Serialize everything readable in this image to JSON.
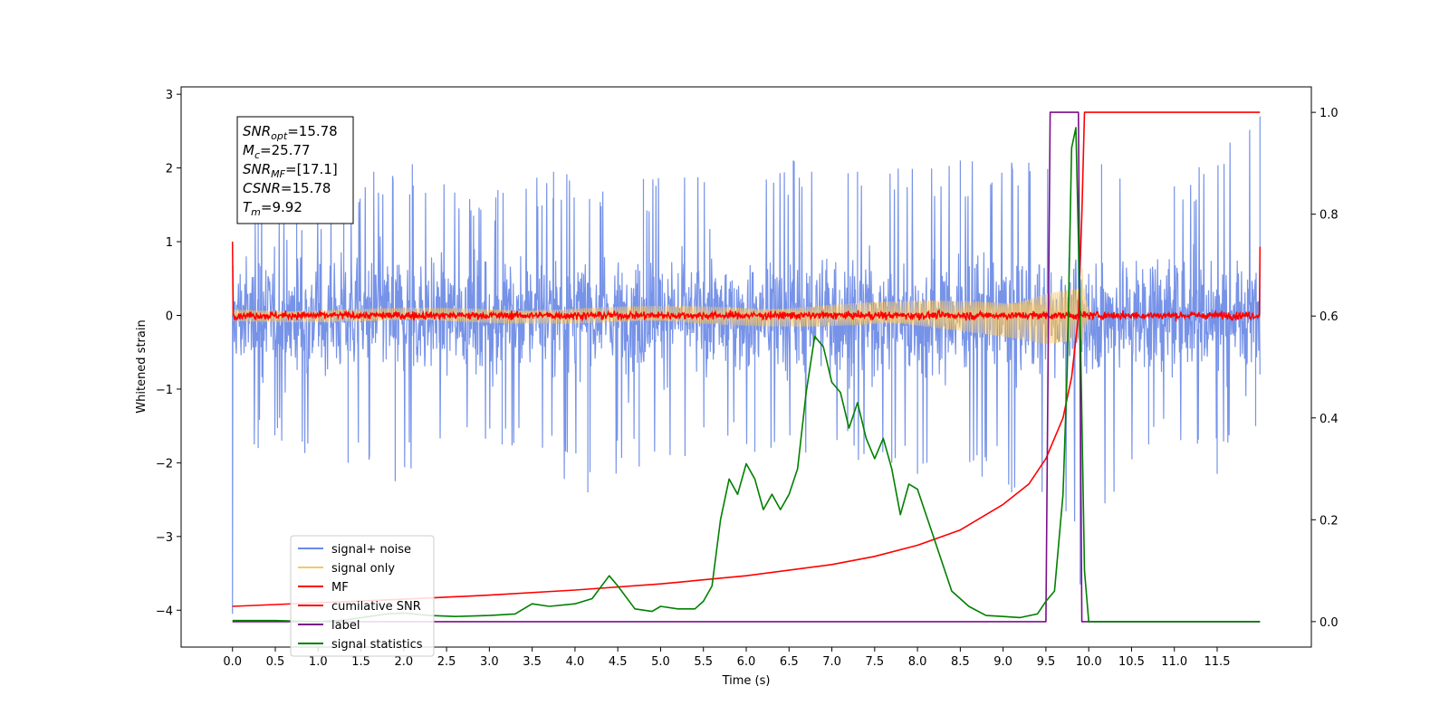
{
  "chart_data": {
    "type": "line",
    "xlabel": "Time (s)",
    "ylabel": "Whitened strain",
    "xlim": [
      -0.6,
      12.6
    ],
    "ylim": [
      -4.5,
      3.1
    ],
    "y2lim": [
      -0.05,
      1.05
    ],
    "x_ticks": [
      0.0,
      0.5,
      1.0,
      1.5,
      2.0,
      2.5,
      3.0,
      3.5,
      4.0,
      4.5,
      5.0,
      5.5,
      6.0,
      6.5,
      7.0,
      7.5,
      8.0,
      8.5,
      9.0,
      9.5,
      10.0,
      10.5,
      11.0,
      11.5
    ],
    "x_tick_labels": [
      "0.0",
      "0.5",
      "1.0",
      "1.5",
      "2.0",
      "2.5",
      "3.0",
      "3.5",
      "4.0",
      "4.5",
      "5.0",
      "5.5",
      "6.0",
      "6.5",
      "7.0",
      "7.5",
      "8.0",
      "8.5",
      "9.0",
      "9.5",
      "10.0",
      "10.5",
      "11.0",
      "11.5"
    ],
    "y_ticks": [
      3,
      2,
      1,
      0,
      -1,
      -2,
      -3,
      -4
    ],
    "y_tick_labels": [
      "3",
      "2",
      "1",
      "0",
      "−1",
      "−2",
      "−3",
      "−4"
    ],
    "y2_ticks": [
      1.0,
      0.8,
      0.6,
      0.4,
      0.2,
      0.0
    ],
    "y2_tick_labels": [
      "1.0",
      "0.8",
      "0.6",
      "0.4",
      "0.2",
      "0.0"
    ],
    "grid": false,
    "legend_position": "lower-left",
    "info_box": {
      "lines": [
        {
          "main": "SNR",
          "sub": "opt",
          "value": "=15.78"
        },
        {
          "main": "M",
          "sub": "c",
          "value": "=25.77"
        },
        {
          "main": "SNR",
          "sub": "MF",
          "value": "=[17.1]"
        },
        {
          "main": "CSNR",
          "sub": "",
          "value": "=15.78"
        },
        {
          "main": "T",
          "sub": "m",
          "value": "=9.92"
        }
      ]
    },
    "series": [
      {
        "name": "signal+ noise",
        "color": "#6b8ae6",
        "axis": "left",
        "kind": "noise",
        "x_range": [
          0.0,
          12.0
        ],
        "envelope_typical": 1.05,
        "peaks_upper": [
          [
            0.3,
            1.6
          ],
          [
            0.75,
            1.5
          ],
          [
            1.3,
            1.6
          ],
          [
            1.65,
            1.95
          ],
          [
            2.1,
            2.05
          ],
          [
            3.1,
            1.7
          ],
          [
            3.75,
            1.95
          ],
          [
            4.8,
            1.85
          ],
          [
            6.55,
            2.1
          ],
          [
            7.3,
            1.95
          ],
          [
            8.5,
            2.1
          ],
          [
            10.15,
            2.05
          ],
          [
            11.0,
            1.75
          ],
          [
            12.0,
            2.7
          ]
        ],
        "peaks_lower": [
          [
            0.0,
            -4.05
          ],
          [
            0.3,
            -1.8
          ],
          [
            1.35,
            -2.0
          ],
          [
            1.9,
            -2.25
          ],
          [
            3.15,
            -1.75
          ],
          [
            4.15,
            -2.4
          ],
          [
            4.75,
            -2.05
          ],
          [
            6.1,
            -1.85
          ],
          [
            7.7,
            -2.0
          ],
          [
            8.0,
            -2.15
          ],
          [
            9.1,
            -2.4
          ],
          [
            9.9,
            -3.65
          ],
          [
            10.7,
            -1.75
          ],
          [
            11.5,
            -2.15
          ],
          [
            11.95,
            -1.5
          ]
        ]
      },
      {
        "name": "signal only",
        "color": "#f5c76a",
        "axis": "left",
        "kind": "chirp",
        "x_range": [
          0.0,
          12.0
        ],
        "merger_time": 9.92,
        "peak_amplitude": 0.75
      },
      {
        "name": "MF",
        "color": "#ff0000",
        "axis": "left",
        "kind": "filter",
        "x_range": [
          0.0,
          12.0
        ],
        "envelope_typical": 0.08,
        "edge_values": [
          1.0,
          0.93
        ]
      },
      {
        "name": "cumilative SNR",
        "color": "#ff0000",
        "axis": "right",
        "x": [
          0.0,
          1.0,
          2.0,
          3.0,
          4.0,
          5.0,
          6.0,
          7.0,
          7.5,
          8.0,
          8.5,
          9.0,
          9.3,
          9.5,
          9.7,
          9.8,
          9.88,
          9.92,
          9.95,
          12.0
        ],
        "y": [
          0.03,
          0.037,
          0.044,
          0.052,
          0.062,
          0.074,
          0.09,
          0.112,
          0.128,
          0.15,
          0.18,
          0.23,
          0.27,
          0.32,
          0.4,
          0.48,
          0.6,
          0.8,
          1.0,
          1.0
        ]
      },
      {
        "name": "label",
        "color": "#7b0e8a",
        "axis": "right",
        "x": [
          0.0,
          9.5,
          9.55,
          9.88,
          9.92,
          12.0
        ],
        "y": [
          0.0,
          0.0,
          1.0,
          1.0,
          0.0,
          0.0
        ]
      },
      {
        "name": "signal statistics",
        "color": "#008000",
        "axis": "right",
        "x": [
          0.0,
          0.5,
          1.0,
          1.3,
          1.6,
          1.8,
          2.0,
          2.3,
          2.6,
          3.0,
          3.3,
          3.5,
          3.7,
          4.0,
          4.2,
          4.4,
          4.5,
          4.7,
          4.9,
          5.0,
          5.2,
          5.4,
          5.5,
          5.6,
          5.7,
          5.8,
          5.9,
          6.0,
          6.1,
          6.2,
          6.3,
          6.4,
          6.5,
          6.6,
          6.7,
          6.8,
          6.9,
          7.0,
          7.1,
          7.2,
          7.3,
          7.4,
          7.5,
          7.6,
          7.7,
          7.8,
          7.9,
          8.0,
          8.2,
          8.4,
          8.6,
          8.8,
          9.0,
          9.2,
          9.4,
          9.5,
          9.6,
          9.7,
          9.75,
          9.8,
          9.85,
          9.9,
          9.95,
          10.0,
          12.0
        ],
        "y": [
          0.002,
          0.002,
          0.0,
          0.003,
          0.01,
          0.015,
          0.017,
          0.012,
          0.01,
          0.012,
          0.015,
          0.035,
          0.03,
          0.035,
          0.045,
          0.09,
          0.07,
          0.025,
          0.02,
          0.03,
          0.025,
          0.025,
          0.04,
          0.07,
          0.2,
          0.28,
          0.25,
          0.31,
          0.28,
          0.22,
          0.25,
          0.22,
          0.25,
          0.3,
          0.45,
          0.56,
          0.54,
          0.47,
          0.45,
          0.38,
          0.43,
          0.36,
          0.32,
          0.36,
          0.3,
          0.21,
          0.27,
          0.26,
          0.16,
          0.06,
          0.03,
          0.012,
          0.01,
          0.008,
          0.015,
          0.04,
          0.06,
          0.25,
          0.5,
          0.93,
          0.97,
          0.6,
          0.1,
          0.0,
          0.0
        ]
      }
    ]
  }
}
